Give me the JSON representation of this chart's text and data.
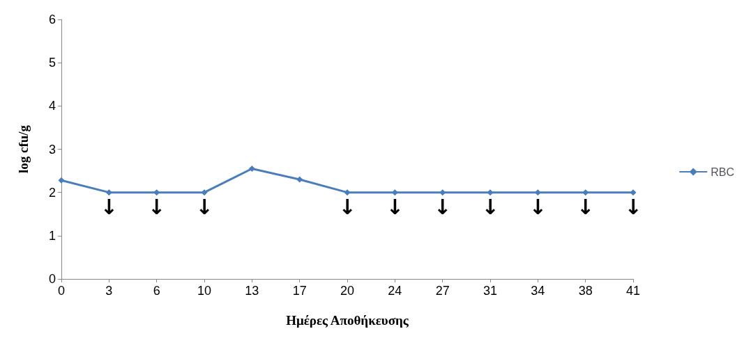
{
  "chart_data": {
    "type": "line",
    "xlabel": "Ημέρες Αποθήκευσης",
    "ylabel": "log cfu/g",
    "categories": [
      "0",
      "3",
      "6",
      "10",
      "13",
      "17",
      "20",
      "24",
      "27",
      "31",
      "34",
      "38",
      "41"
    ],
    "series": [
      {
        "name": "RBC",
        "color": "#4a7ebb",
        "values": [
          2.28,
          2,
          2,
          2,
          2.55,
          2.3,
          2,
          2,
          2,
          2,
          2,
          2,
          2
        ]
      }
    ],
    "ylim": [
      0,
      6
    ],
    "yticks": [
      0,
      1,
      2,
      3,
      4,
      5,
      6
    ],
    "grid": false,
    "legend": "right",
    "marker": "diamond",
    "line_style": "solid",
    "annotations": [
      {
        "text": "↓",
        "x": "3",
        "y": 2
      },
      {
        "text": "↓",
        "x": "6",
        "y": 2
      },
      {
        "text": "↓",
        "x": "10",
        "y": 2
      },
      {
        "text": "↓",
        "x": "20",
        "y": 2
      },
      {
        "text": "↓",
        "x": "24",
        "y": 2
      },
      {
        "text": "↓",
        "x": "27",
        "y": 2
      },
      {
        "text": "↓",
        "x": "31",
        "y": 2
      },
      {
        "text": "↓",
        "x": "34",
        "y": 2
      },
      {
        "text": "↓",
        "x": "38",
        "y": 2
      },
      {
        "text": "↓",
        "x": "41",
        "y": 2
      }
    ]
  }
}
